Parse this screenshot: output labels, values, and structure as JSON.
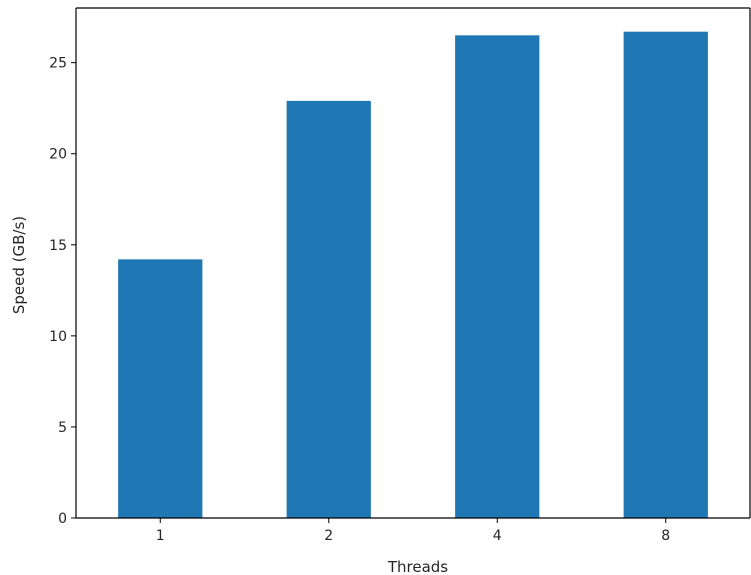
{
  "chart_data": {
    "type": "bar",
    "title": "",
    "xlabel": "Threads",
    "ylabel": "Speed (GB/s)",
    "categories": [
      "1",
      "2",
      "4",
      "8"
    ],
    "values": [
      14.2,
      22.9,
      26.5,
      26.7
    ],
    "ylim": [
      0,
      28
    ],
    "yticks": [
      "0",
      "5",
      "10",
      "15",
      "20",
      "25"
    ],
    "bar_color": "#1f77b4",
    "grid": false,
    "legend": false
  }
}
